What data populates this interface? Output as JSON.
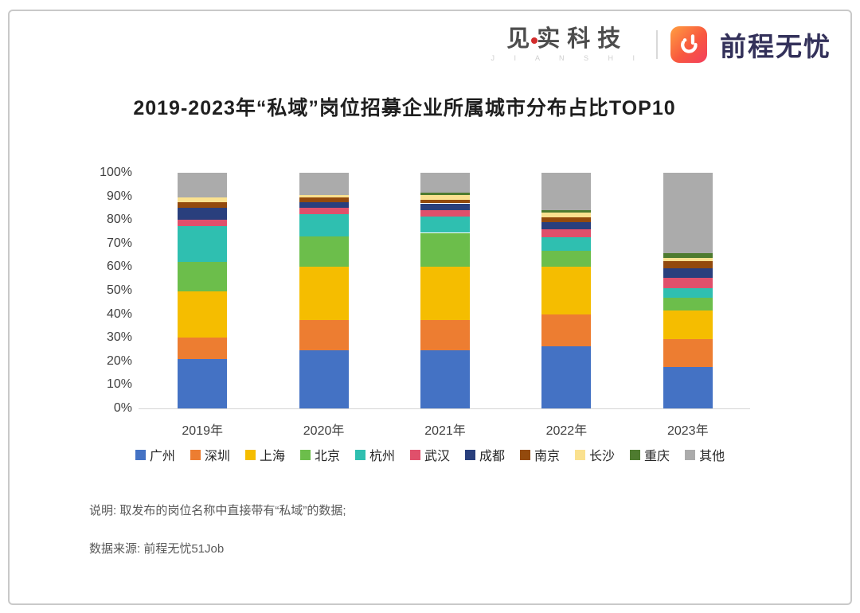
{
  "header": {
    "brand_left": "见实科技",
    "brand_left_sub": "J I A N S H I",
    "brand_right": "前程无忧",
    "brand_right_color": "#33315a",
    "icon_gradient_start": "#ff9f40",
    "icon_gradient_end": "#f33f5e"
  },
  "title": "2019-2023年“私域”岗位招募企业所属城市分布占比TOP10",
  "chart_data": {
    "type": "bar",
    "stacked": true,
    "title": "2019-2023年“私域”岗位招募企业所属城市分布占比TOP10",
    "categories": [
      "2019年",
      "2020年",
      "2021年",
      "2022年",
      "2023年"
    ],
    "series": [
      {
        "name": "广州",
        "color": "#4472c4",
        "values": [
          21,
          24.5,
          24.5,
          26.5,
          17.5
        ]
      },
      {
        "name": "深圳",
        "color": "#ed7d31",
        "values": [
          9,
          13,
          13,
          13.5,
          12
        ]
      },
      {
        "name": "上海",
        "color": "#f5bd00",
        "values": [
          19.5,
          22.5,
          22.5,
          20,
          12
        ]
      },
      {
        "name": "北京",
        "color": "#6cbe4b",
        "values": [
          12.5,
          13,
          14.5,
          7,
          5.5
        ]
      },
      {
        "name": "杭州",
        "color": "#2fbfb0",
        "values": [
          15.5,
          9.5,
          7,
          5.5,
          4
        ]
      },
      {
        "name": "武汉",
        "color": "#e0506b",
        "values": [
          2.5,
          2.5,
          2.5,
          3.5,
          4.5
        ]
      },
      {
        "name": "成都",
        "color": "#293f7d",
        "values": [
          5,
          2.5,
          3,
          3,
          4
        ]
      },
      {
        "name": "南京",
        "color": "#934a0d",
        "values": [
          2.5,
          2,
          1.5,
          2,
          3
        ]
      },
      {
        "name": "长沙",
        "color": "#fae18f",
        "values": [
          2,
          1,
          2,
          2,
          1.5
        ]
      },
      {
        "name": "重庆",
        "color": "#4e7b2f",
        "values": [
          0,
          0,
          1,
          1,
          2
        ]
      },
      {
        "name": "其他",
        "color": "#ababab",
        "values": [
          10.5,
          9.5,
          8.5,
          16,
          34
        ]
      }
    ],
    "xlabel": "",
    "ylabel": "",
    "ylim": [
      0,
      100
    ],
    "y_ticks": [
      0,
      10,
      20,
      30,
      40,
      50,
      60,
      70,
      80,
      90,
      100
    ],
    "y_tick_suffix": "%",
    "grid": false,
    "legend_position": "bottom"
  },
  "notes": {
    "note1": "说明: 取发布的岗位名称中直接带有“私域”的数据;",
    "note2": "数据来源: 前程无忧51Job"
  }
}
